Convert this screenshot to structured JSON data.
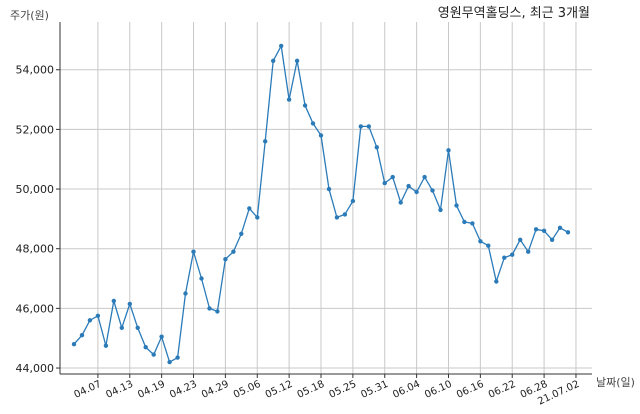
{
  "chart_data": {
    "type": "line",
    "title": "영원무역홀딩스, 최근 3개월",
    "ylabel": "주가(원)",
    "xlabel": "날짜(일)",
    "ylim": [
      43800,
      55600
    ],
    "yticks": [
      44000,
      46000,
      48000,
      50000,
      52000,
      54000
    ],
    "ytick_labels": [
      "44,000",
      "46,000",
      "48,000",
      "50,000",
      "52,000",
      "54,000"
    ],
    "xtick_labels": [
      "04.07",
      "04.13",
      "04.19",
      "04.23",
      "04.29",
      "05.06",
      "05.12",
      "05.18",
      "05.25",
      "05.31",
      "06.04",
      "06.10",
      "06.16",
      "06.22",
      "06.28",
      "21.07.02"
    ],
    "xtick_positions": [
      3,
      7,
      11,
      15,
      19,
      23,
      27,
      31,
      35,
      39,
      43,
      47,
      51,
      55,
      59,
      63
    ],
    "grid": true,
    "color": "#2b7bb9",
    "series": [
      {
        "values": [
          44800,
          45100,
          45600,
          45750,
          44750,
          46250,
          45350,
          46150,
          45350,
          44700,
          44450,
          45050,
          44200,
          44350,
          46500,
          47900,
          47000,
          46000,
          45900,
          47650,
          47900,
          48500,
          49350,
          49050,
          51600,
          54300,
          54800,
          53000,
          54300,
          52800,
          52200,
          51800,
          50000,
          49050,
          49150,
          49600,
          52100,
          52100,
          51400,
          50200,
          50400,
          49550,
          50100,
          49900,
          50400,
          49950,
          49300,
          51300,
          49450,
          48900,
          48850,
          48250,
          48100,
          46900,
          47700,
          47800,
          48300,
          47900,
          48650,
          48600,
          48300,
          48700,
          48550
        ]
      }
    ]
  }
}
